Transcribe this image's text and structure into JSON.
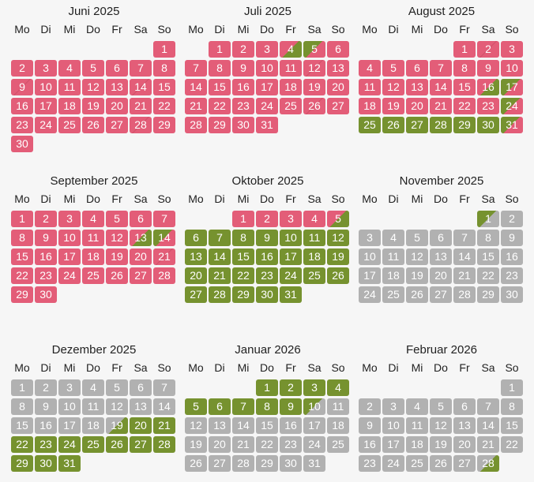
{
  "weekdays": [
    "Mo",
    "Di",
    "Mi",
    "Do",
    "Fr",
    "Sa",
    "So"
  ],
  "months": [
    {
      "title": "Juni 2025",
      "days": 30,
      "offset": 6,
      "status": "bbbbbbbbbbbbbbbbbbbbbbbbbbbbbb",
      "split": {
        "9": "bb",
        "14": "bb",
        "28": "bb"
      }
    },
    {
      "title": "Juli 2025",
      "days": 31,
      "offset": 1,
      "status": "bbbbbbbbbbbbbbbbbbbbbbbbbbbbbbb",
      "split": {
        "4": "ba",
        "5": "ab",
        "12": "bb",
        "26": "bb"
      }
    },
    {
      "title": "August 2025",
      "days": 31,
      "offset": 4,
      "status": "bbbbbbbbbbbbbbbbbbbbbbbbaaaaaaa",
      "split": {
        "2": "bb",
        "16": "ba",
        "17": "ab",
        "24": "ab",
        "31": "ab"
      }
    },
    {
      "title": "September 2025",
      "days": 30,
      "offset": 0,
      "status": "bbbbbbbbbbbbbbbbbbbbbbbbbbbbbb",
      "split": {
        "13": "ba",
        "14": "ab",
        "21": "bb"
      }
    },
    {
      "title": "Oktober 2025",
      "days": 31,
      "offset": 2,
      "status": "bbbbaaaaaaaaaaaaaaaaaaaaaaaaaaa",
      "split": {
        "5": "ba"
      }
    },
    {
      "title": "November 2025",
      "days": 30,
      "offset": 5,
      "status": "gggggggggggggggggggggggggggggg",
      "split": {
        "1": "ag"
      }
    },
    {
      "title": "Dezember 2025",
      "days": 31,
      "offset": 0,
      "status": "gggggggggggggggggggaaaaaaaaaaaa",
      "split": {
        "19": "ga"
      }
    },
    {
      "title": "Januar 2026",
      "days": 31,
      "offset": 3,
      "status": "aaaaaaaaaaggggggggggggggggggggg",
      "split": {
        "10": "ag"
      }
    },
    {
      "title": "Februar 2026",
      "days": 28,
      "offset": 6,
      "status": "gggggggggggggggggggggggggggg",
      "split": {
        "28": "ga"
      }
    }
  ],
  "colors": {
    "booked": "#e35d78",
    "available": "#76922f",
    "unavailable": "#b1b1b1"
  }
}
